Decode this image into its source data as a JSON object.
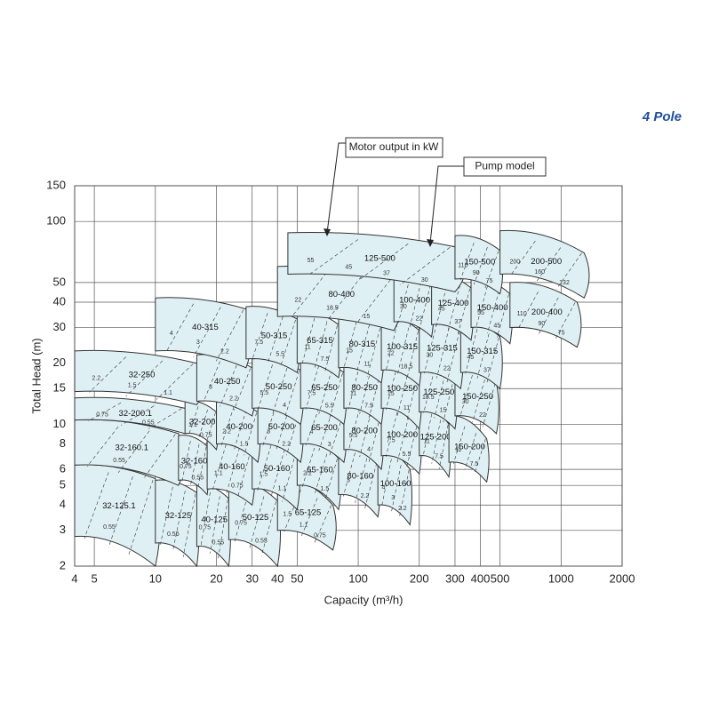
{
  "chart_data": {
    "type": "tile",
    "title": "4 Pole",
    "annotations": [
      "Motor output in kW",
      "Pump model"
    ],
    "xlabel": "Capacity (m³/h)",
    "ylabel": "Total Head (m)",
    "xscale": "log",
    "yscale": "log",
    "grid": true,
    "xlim": [
      4,
      2000
    ],
    "ylim": [
      2,
      150
    ],
    "xticks": [
      4,
      5,
      10,
      20,
      30,
      40,
      50,
      100,
      200,
      300,
      400,
      500,
      1000,
      2000
    ],
    "yticks": [
      2,
      3,
      4,
      5,
      6,
      8,
      10,
      15,
      20,
      30,
      40,
      50,
      100,
      150
    ],
    "color": "#dff0f5",
    "tiles": [
      {
        "model": "32-125.1",
        "q": [
          4,
          10
        ],
        "h_top": [
          6.3,
          5.4
        ],
        "h_bottom": [
          2.8,
          2.0
        ],
        "kw": [
          0.55
        ]
      },
      {
        "model": "32-125",
        "q": [
          10,
          16
        ],
        "h_top": [
          5.3,
          4.6
        ],
        "h_bottom": [
          2.6,
          2.0
        ],
        "kw": [
          0.55
        ]
      },
      {
        "model": "40-125",
        "q": [
          16,
          23
        ],
        "h_top": [
          5.0,
          4.3
        ],
        "h_bottom": [
          2.5,
          2.0
        ],
        "kw": [
          0.75,
          0.55
        ]
      },
      {
        "model": "50-125",
        "q": [
          23,
          40
        ],
        "h_top": [
          5.3,
          4.2
        ],
        "h_bottom": [
          2.7,
          2.0
        ],
        "kw": [
          0.75,
          0.55
        ]
      },
      {
        "model": "65-125",
        "q": [
          40,
          75
        ],
        "h_top": [
          5.5,
          4.0
        ],
        "h_bottom": [
          3.0,
          2.4
        ],
        "kw": [
          1.5,
          1.1,
          0.75
        ]
      },
      {
        "model": "32-160.1",
        "q": [
          4,
          13
        ],
        "h_top": [
          10.5,
          9.0
        ],
        "h_bottom": [
          6.3,
          5.0
        ],
        "kw": [
          0.55
        ]
      },
      {
        "model": "32-160",
        "q": [
          13,
          18
        ],
        "h_top": [
          8.8,
          7.8
        ],
        "h_bottom": [
          5.3,
          4.5
        ],
        "kw": [
          0.75,
          0.55
        ]
      },
      {
        "model": "40-160",
        "q": [
          18,
          30
        ],
        "h_top": [
          8.5,
          7.5
        ],
        "h_bottom": [
          4.8,
          4.0
        ],
        "kw": [
          1.1,
          0.75
        ]
      },
      {
        "model": "50-160",
        "q": [
          30,
          50
        ],
        "h_top": [
          8.5,
          7.3
        ],
        "h_bottom": [
          4.8,
          3.8
        ],
        "kw": [
          1.5,
          1.1
        ]
      },
      {
        "model": "65-160",
        "q": [
          50,
          80
        ],
        "h_top": [
          8.5,
          6.8
        ],
        "h_bottom": [
          5.0,
          3.8
        ],
        "kw": [
          2.2,
          1.5
        ]
      },
      {
        "model": "80-160",
        "q": [
          80,
          125
        ],
        "h_top": [
          8.0,
          6.5
        ],
        "h_bottom": [
          4.5,
          3.5
        ],
        "kw": [
          3,
          2.2
        ]
      },
      {
        "model": "100-160",
        "q": [
          125,
          180
        ],
        "h_top": [
          7.5,
          6.0
        ],
        "h_bottom": [
          4.0,
          3.2
        ],
        "kw": [
          4,
          3,
          2.2
        ]
      },
      {
        "model": "32-200.1",
        "q": [
          4,
          14
        ],
        "h_top": [
          13.5,
          12.0
        ],
        "h_bottom": [
          10.5,
          9.0
        ],
        "kw": [
          0.75,
          0.55
        ]
      },
      {
        "model": "32-200",
        "q": [
          14,
          20
        ],
        "h_top": [
          13,
          11.5
        ],
        "h_bottom": [
          9,
          7.5
        ],
        "kw": [
          1.1,
          0.75
        ]
      },
      {
        "model": "40-200",
        "q": [
          20,
          32
        ],
        "h_top": [
          13,
          11.5
        ],
        "h_bottom": [
          8,
          6.5
        ],
        "kw": [
          2.2,
          1.5
        ]
      },
      {
        "model": "50-200",
        "q": [
          32,
          52
        ],
        "h_top": [
          13,
          11.5
        ],
        "h_bottom": [
          8,
          6.5
        ],
        "kw": [
          3,
          2.2
        ]
      },
      {
        "model": "65-200",
        "q": [
          52,
          85
        ],
        "h_top": [
          13,
          11
        ],
        "h_bottom": [
          8,
          6.5
        ],
        "kw": [
          4,
          3
        ]
      },
      {
        "model": "80-200",
        "q": [
          85,
          130
        ],
        "h_top": [
          13,
          11
        ],
        "h_bottom": [
          7.5,
          6
        ],
        "kw": [
          5.5,
          4
        ]
      },
      {
        "model": "100-200",
        "q": [
          130,
          200
        ],
        "h_top": [
          12.5,
          10.5
        ],
        "h_bottom": [
          7,
          5.7
        ],
        "kw": [
          7.5,
          5.5
        ]
      },
      {
        "model": "125-200",
        "q": [
          200,
          280
        ],
        "h_top": [
          12.5,
          10
        ],
        "h_bottom": [
          7,
          5.5
        ],
        "kw": [
          11,
          7.5
        ]
      },
      {
        "model": "150-200",
        "q": [
          280,
          430
        ],
        "h_top": [
          11,
          8.5
        ],
        "h_bottom": [
          6.5,
          5.2
        ],
        "kw": [
          11,
          7.5
        ]
      },
      {
        "model": "32-250",
        "q": [
          4,
          16
        ],
        "h_top": [
          23,
          20
        ],
        "h_bottom": [
          14.5,
          12.5
        ],
        "kw": [
          2.2,
          1.5,
          1.1
        ]
      },
      {
        "model": "40-250",
        "q": [
          16,
          30
        ],
        "h_top": [
          22,
          19
        ],
        "h_bottom": [
          13,
          11
        ],
        "kw": [
          3,
          2.2
        ]
      },
      {
        "model": "50-250",
        "q": [
          30,
          52
        ],
        "h_top": [
          21,
          18.5
        ],
        "h_bottom": [
          12,
          10
        ],
        "kw": [
          5.5,
          4
        ]
      },
      {
        "model": "65-250",
        "q": [
          52,
          85
        ],
        "h_top": [
          21,
          18
        ],
        "h_bottom": [
          12,
          10
        ],
        "kw": [
          7.5,
          5.5
        ]
      },
      {
        "model": "80-250",
        "q": [
          85,
          130
        ],
        "h_top": [
          21,
          18
        ],
        "h_bottom": [
          12,
          10
        ],
        "kw": [
          11,
          7.5
        ]
      },
      {
        "model": "100-250",
        "q": [
          130,
          200
        ],
        "h_top": [
          21,
          18
        ],
        "h_bottom": [
          12,
          9.5
        ],
        "kw": [
          15,
          11
        ]
      },
      {
        "model": "125-250",
        "q": [
          200,
          300
        ],
        "h_top": [
          20,
          17
        ],
        "h_bottom": [
          11.5,
          9.5
        ],
        "kw": [
          18.5,
          15
        ]
      },
      {
        "model": "150-250",
        "q": [
          300,
          480
        ],
        "h_top": [
          19,
          16
        ],
        "h_bottom": [
          11,
          9
        ],
        "kw": [
          30,
          22
        ]
      },
      {
        "model": "40-315",
        "q": [
          10,
          28
        ],
        "h_top": [
          42,
          37
        ],
        "h_bottom": [
          23,
          19
        ],
        "kw": [
          4,
          3,
          2.2
        ]
      },
      {
        "model": "50-315",
        "q": [
          28,
          50
        ],
        "h_top": [
          38,
          33
        ],
        "h_bottom": [
          21,
          18
        ],
        "kw": [
          7.5,
          5.5
        ]
      },
      {
        "model": "65-315",
        "q": [
          50,
          80
        ],
        "h_top": [
          36,
          31
        ],
        "h_bottom": [
          20,
          17
        ],
        "kw": [
          11,
          7.5
        ]
      },
      {
        "model": "80-315",
        "q": [
          80,
          130
        ],
        "h_top": [
          35,
          30
        ],
        "h_bottom": [
          19,
          16
        ],
        "kw": [
          15,
          11
        ]
      },
      {
        "model": "100-315",
        "q": [
          130,
          200
        ],
        "h_top": [
          34,
          29
        ],
        "h_bottom": [
          18.5,
          15.5
        ],
        "kw": [
          22,
          18.5
        ]
      },
      {
        "model": "125-315",
        "q": [
          200,
          320
        ],
        "h_top": [
          34,
          29
        ],
        "h_bottom": [
          18,
          15
        ],
        "kw": [
          30,
          22
        ]
      },
      {
        "model": "150-315",
        "q": [
          320,
          500
        ],
        "h_top": [
          32,
          27
        ],
        "h_bottom": [
          18,
          15
        ],
        "kw": [
          45,
          37
        ]
      },
      {
        "model": "80-400",
        "q": [
          40,
          150
        ],
        "h_top": [
          60,
          52
        ],
        "h_bottom": [
          34,
          29
        ],
        "kw": [
          22,
          18.5,
          15
        ]
      },
      {
        "model": "100-400",
        "q": [
          150,
          230
        ],
        "h_top": [
          56,
          49
        ],
        "h_bottom": [
          32,
          27
        ],
        "kw": [
          30,
          22
        ]
      },
      {
        "model": "125-400",
        "q": [
          230,
          360
        ],
        "h_top": [
          55,
          47
        ],
        "h_bottom": [
          31,
          26
        ],
        "kw": [
          45,
          37
        ]
      },
      {
        "model": "150-400",
        "q": [
          360,
          560
        ],
        "h_top": [
          52,
          44
        ],
        "h_bottom": [
          30,
          25
        ],
        "kw": [
          55,
          45
        ]
      },
      {
        "model": "200-400",
        "q": [
          560,
          1200
        ],
        "h_top": [
          50,
          40
        ],
        "h_bottom": [
          30,
          24
        ],
        "kw": [
          110,
          90,
          75
        ]
      },
      {
        "model": "125-500",
        "q": [
          45,
          300
        ],
        "h_top": [
          88,
          75
        ],
        "h_bottom": [
          55,
          45
        ],
        "kw": [
          55,
          45,
          37,
          30
        ]
      },
      {
        "model": "150-500",
        "q": [
          300,
          500
        ],
        "h_top": [
          85,
          72
        ],
        "h_bottom": [
          52,
          44
        ],
        "kw": [
          110,
          90,
          75
        ]
      },
      {
        "model": "200-500",
        "q": [
          500,
          1300
        ],
        "h_top": [
          90,
          70
        ],
        "h_bottom": [
          55,
          42
        ],
        "kw": [
          200,
          160,
          132
        ]
      }
    ]
  }
}
